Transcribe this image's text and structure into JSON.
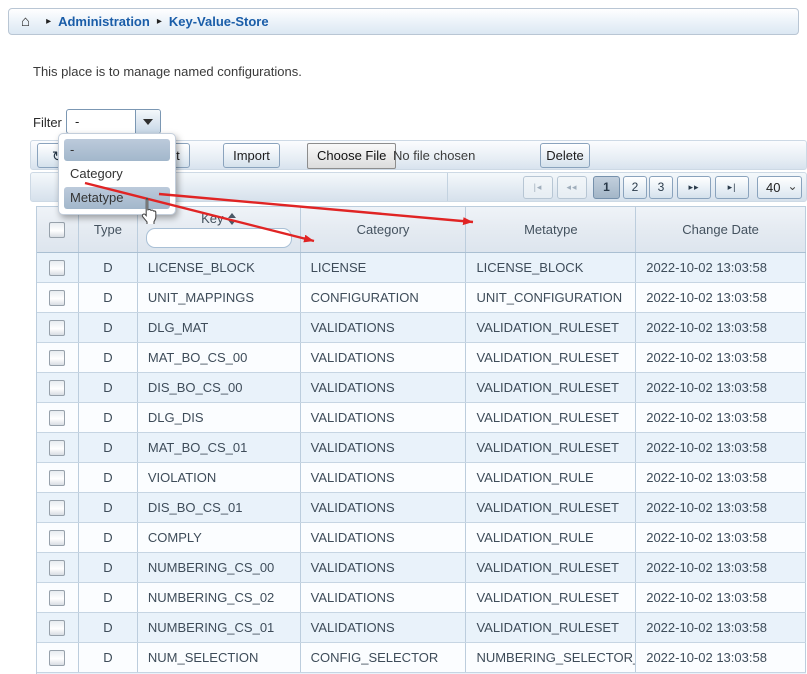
{
  "breadcrumb": {
    "items": [
      "Administration",
      "Key-Value-Store"
    ]
  },
  "description": "This place is to manage named configurations.",
  "filter": {
    "label": "Filter",
    "selected": "-",
    "options": [
      "-",
      "Category",
      "Metatype"
    ]
  },
  "toolbar": {
    "refresh_icon": "↻",
    "refresh_label": "Refresh",
    "export_label": "Export",
    "import_label": "Import",
    "choose_file_label": "Choose File",
    "file_status": "No file chosen",
    "delete_label": "Delete"
  },
  "pagination": {
    "first": "|◂",
    "prev": "◂◂",
    "pages": [
      "1",
      "2",
      "3"
    ],
    "current_page": "1",
    "next": "▸▸",
    "last": "▸|",
    "page_size": "40"
  },
  "table": {
    "headers": {
      "type": "Type",
      "key": "Key",
      "category": "Category",
      "metatype": "Metatype",
      "change_date": "Change Date"
    },
    "key_filter_value": "",
    "rows": [
      {
        "type": "D",
        "key": "LICENSE_BLOCK",
        "category": "LICENSE",
        "metatype": "LICENSE_BLOCK",
        "change_date": "2022-10-02 13:03:58"
      },
      {
        "type": "D",
        "key": "UNIT_MAPPINGS",
        "category": "CONFIGURATION",
        "metatype": "UNIT_CONFIGURATION",
        "change_date": "2022-10-02 13:03:58"
      },
      {
        "type": "D",
        "key": "DLG_MAT",
        "category": "VALIDATIONS",
        "metatype": "VALIDATION_RULESET",
        "change_date": "2022-10-02 13:03:58"
      },
      {
        "type": "D",
        "key": "MAT_BO_CS_00",
        "category": "VALIDATIONS",
        "metatype": "VALIDATION_RULESET",
        "change_date": "2022-10-02 13:03:58"
      },
      {
        "type": "D",
        "key": "DIS_BO_CS_00",
        "category": "VALIDATIONS",
        "metatype": "VALIDATION_RULESET",
        "change_date": "2022-10-02 13:03:58"
      },
      {
        "type": "D",
        "key": "DLG_DIS",
        "category": "VALIDATIONS",
        "metatype": "VALIDATION_RULESET",
        "change_date": "2022-10-02 13:03:58"
      },
      {
        "type": "D",
        "key": "MAT_BO_CS_01",
        "category": "VALIDATIONS",
        "metatype": "VALIDATION_RULESET",
        "change_date": "2022-10-02 13:03:58"
      },
      {
        "type": "D",
        "key": "VIOLATION",
        "category": "VALIDATIONS",
        "metatype": "VALIDATION_RULE",
        "change_date": "2022-10-02 13:03:58"
      },
      {
        "type": "D",
        "key": "DIS_BO_CS_01",
        "category": "VALIDATIONS",
        "metatype": "VALIDATION_RULESET",
        "change_date": "2022-10-02 13:03:58"
      },
      {
        "type": "D",
        "key": "COMPLY",
        "category": "VALIDATIONS",
        "metatype": "VALIDATION_RULE",
        "change_date": "2022-10-02 13:03:58"
      },
      {
        "type": "D",
        "key": "NUMBERING_CS_00",
        "category": "VALIDATIONS",
        "metatype": "VALIDATION_RULESET",
        "change_date": "2022-10-02 13:03:58"
      },
      {
        "type": "D",
        "key": "NUMBERING_CS_02",
        "category": "VALIDATIONS",
        "metatype": "VALIDATION_RULESET",
        "change_date": "2022-10-02 13:03:58"
      },
      {
        "type": "D",
        "key": "NUMBERING_CS_01",
        "category": "VALIDATIONS",
        "metatype": "VALIDATION_RULESET",
        "change_date": "2022-10-02 13:03:58"
      },
      {
        "type": "D",
        "key": "NUM_SELECTION",
        "category": "CONFIG_SELECTOR",
        "metatype": "NUMBERING_SELECTOR_CON",
        "change_date": "2022-10-02 13:03:58"
      }
    ]
  },
  "colors": {
    "breadcrumb_link": "#1a5da8",
    "arrow_red": "#e02424",
    "row_alt": "#e9f2fa",
    "row_base": "#fbfdff",
    "table_border": "#bccddd",
    "option_highlight_top": "#bccadb",
    "option_highlight_bottom": "#a2b7cb",
    "active_page_top": "#c2cfdd",
    "active_page_bottom": "#a3b6c8"
  }
}
